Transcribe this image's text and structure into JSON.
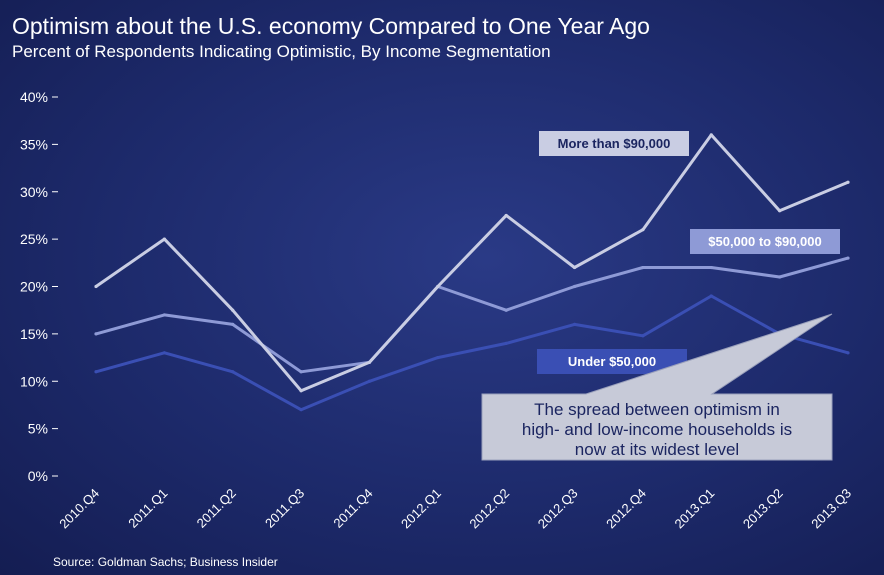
{
  "chart_data": {
    "type": "line",
    "title": "Optimism about the U.S. economy Compared to One Year Ago",
    "subtitle": "Percent of Respondents Indicating Optimistic, By Income Segmentation",
    "categories": [
      "2010.Q4",
      "2011.Q1",
      "2011.Q2",
      "2011.Q3",
      "2011.Q4",
      "2012.Q1",
      "2012.Q2",
      "2012.Q3",
      "2012.Q4",
      "2013.Q1",
      "2013.Q2",
      "2013.Q3"
    ],
    "y_ticks": [
      "0%",
      "5%",
      "10%",
      "15%",
      "20%",
      "25%",
      "30%",
      "35%",
      "40%"
    ],
    "ylim": [
      0,
      40
    ],
    "grid": false,
    "series": [
      {
        "name": "More than $90,000",
        "values": [
          20,
          25,
          17.5,
          9,
          12,
          20,
          27.5,
          22,
          26,
          36,
          28,
          31
        ],
        "color": "#c9cde3"
      },
      {
        "name": "$50,000 to $90,000",
        "values": [
          15,
          17,
          16,
          11,
          12,
          20,
          17.5,
          20,
          22,
          22,
          21,
          23
        ],
        "color": "#8e9ad6"
      },
      {
        "name": "Under $50,000",
        "values": [
          11,
          13,
          11,
          7,
          10,
          12.5,
          14,
          16,
          14.8,
          19,
          15,
          13
        ],
        "color": "#3a4fb4"
      }
    ],
    "annotation": {
      "lines": [
        "The spread between optimism in",
        "high- and low-income households is",
        "now at its widest level"
      ]
    },
    "source": "Source: Goldman Sachs; Business Insider"
  }
}
